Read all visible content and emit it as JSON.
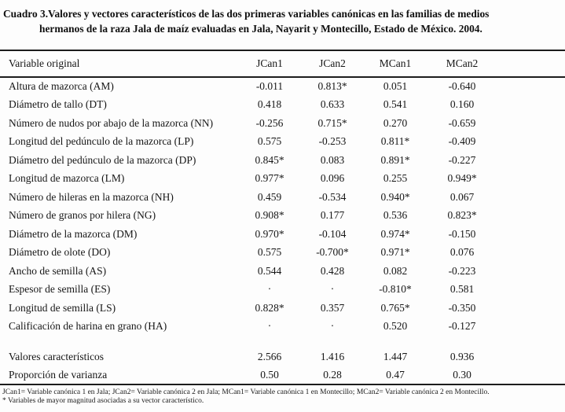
{
  "title": {
    "line1": "Cuadro 3.Valores y vectores característicos de las dos primeras variables canónicas en las familias de medios",
    "line2": "hermanos de la raza Jala de maíz evaluadas en Jala, Nayarit y Montecillo, Estado de México. 2004."
  },
  "table": {
    "columns": [
      "Variable original",
      "JCan1",
      "JCan2",
      "MCan1",
      "MCan2"
    ],
    "rows": [
      {
        "variable": "Altura de mazorca (AM)",
        "values": [
          "-0.011",
          "0.813*",
          "0.051",
          "-0.640"
        ]
      },
      {
        "variable": "Diámetro de tallo (DT)",
        "values": [
          "0.418",
          "0.633",
          "0.541",
          "0.160"
        ]
      },
      {
        "variable": "Número de nudos por abajo de la mazorca (NN)",
        "values": [
          "-0.256",
          "0.715*",
          "0.270",
          "-0.659"
        ]
      },
      {
        "variable": "Longitud del pedúnculo de la mazorca (LP)",
        "values": [
          "0.575",
          "-0.253",
          "0.811*",
          "-0.409"
        ]
      },
      {
        "variable": "Diámetro del pedúnculo de la mazorca (DP)",
        "values": [
          "0.845*",
          "0.083",
          "0.891*",
          "-0.227"
        ]
      },
      {
        "variable": "Longitud de mazorca (LM)",
        "values": [
          "0.977*",
          "0.096",
          "0.255",
          "0.949*"
        ]
      },
      {
        "variable": "Número de hileras en la mazorca (NH)",
        "values": [
          "0.459",
          "-0.534",
          "0.940*",
          "0.067"
        ]
      },
      {
        "variable": "Número de granos por hilera (NG)",
        "values": [
          "0.908*",
          "0.177",
          "0.536",
          "0.823*"
        ]
      },
      {
        "variable": "Diámetro de la mazorca (DM)",
        "values": [
          "0.970*",
          "-0.104",
          "0.974*",
          "-0.150"
        ]
      },
      {
        "variable": "Diámetro de olote (DO)",
        "values": [
          "0.575",
          "-0.700*",
          "0.971*",
          "0.076"
        ]
      },
      {
        "variable": "Ancho de semilla (AS)",
        "values": [
          "0.544",
          "0.428",
          "0.082",
          "-0.223"
        ]
      },
      {
        "variable": "Espesor de semilla (ES)",
        "values": [
          "·",
          "·",
          "-0.810*",
          "0.581"
        ]
      },
      {
        "variable": "Longitud de semilla (LS)",
        "values": [
          "0.828*",
          "0.357",
          "0.765*",
          "-0.350"
        ]
      },
      {
        "variable": "Calificación de harina en grano (HA)",
        "values": [
          "·",
          "·",
          "0.520",
          "-0.127"
        ]
      }
    ],
    "summary_rows": [
      {
        "variable": "Valores característicos",
        "values": [
          "2.566",
          "1.416",
          "1.447",
          "0.936"
        ]
      },
      {
        "variable": "Proporción de varianza",
        "values": [
          "0.50",
          "0.28",
          "0.47",
          "0.30"
        ]
      }
    ]
  },
  "footnotes": {
    "line1": "JCan1= Variable canónica 1 en Jala; JCan2= Variable canónica 2 en Jala; MCan1= Variable canónica 1 en Montecillo; MCan2= Variable canónica 2 en Montecillo.",
    "line2": "* Variables de mayor magnitud asociadas a su vector característico."
  }
}
